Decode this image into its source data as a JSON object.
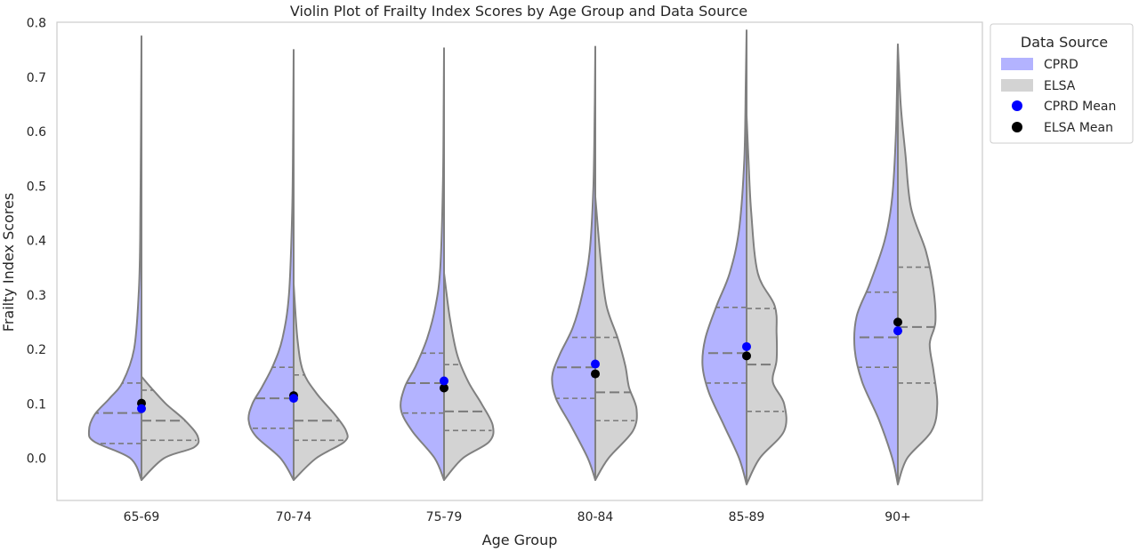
{
  "chart_data": {
    "type": "violin",
    "title": "Violin Plot of Frailty Index Scores by Age Group and Data Source",
    "xlabel": "Age Group",
    "ylabel": "Frailty Index Scores",
    "ylim": [
      -0.08,
      0.8
    ],
    "yticks": [
      "0.0",
      "0.1",
      "0.2",
      "0.3",
      "0.4",
      "0.5",
      "0.6",
      "0.7",
      "0.8"
    ],
    "categories": [
      "65-69",
      "70-74",
      "75-79",
      "80-84",
      "85-89",
      "90+"
    ],
    "grid": false,
    "legend": {
      "title": "Data Source",
      "placement": "outside right, top",
      "entries": [
        "CPRD",
        "ELSA",
        "CPRD Mean",
        "ELSA Mean"
      ]
    },
    "series": [
      {
        "name": "CPRD",
        "color": "#b3b3ff",
        "side": "left",
        "quartiles": [
          [
            0.027,
            0.083,
            0.138
          ],
          [
            0.055,
            0.11,
            0.167
          ],
          [
            0.083,
            0.138,
            0.193
          ],
          [
            0.11,
            0.167,
            0.222
          ],
          [
            0.138,
            0.193,
            0.277
          ],
          [
            0.167,
            0.222,
            0.305
          ]
        ],
        "means": [
          0.091,
          0.11,
          0.142,
          0.173,
          0.205,
          0.234
        ],
        "mean_color": "#0000ff",
        "range": [
          [
            -0.04,
            0.775
          ],
          [
            -0.04,
            0.75
          ],
          [
            -0.04,
            0.753
          ],
          [
            -0.04,
            0.756
          ],
          [
            -0.048,
            0.786
          ],
          [
            -0.048,
            0.76
          ]
        ],
        "shapes": [
          [
            [
              -0.04,
              0
            ],
            [
              0,
              0.06
            ],
            [
              0.03,
              0.25
            ],
            [
              0.05,
              0.28
            ],
            [
              0.08,
              0.25
            ],
            [
              0.11,
              0.17
            ],
            [
              0.14,
              0.1
            ],
            [
              0.2,
              0.04
            ],
            [
              0.3,
              0.015
            ],
            [
              0.4,
              0.007
            ],
            [
              0.6,
              0.003
            ],
            [
              0.775,
              0
            ]
          ],
          [
            [
              -0.04,
              0
            ],
            [
              0,
              0.07
            ],
            [
              0.04,
              0.2
            ],
            [
              0.07,
              0.24
            ],
            [
              0.1,
              0.22
            ],
            [
              0.13,
              0.17
            ],
            [
              0.17,
              0.11
            ],
            [
              0.22,
              0.06
            ],
            [
              0.3,
              0.025
            ],
            [
              0.45,
              0.008
            ],
            [
              0.6,
              0.003
            ],
            [
              0.75,
              0
            ]
          ],
          [
            [
              -0.04,
              0
            ],
            [
              0,
              0.05
            ],
            [
              0.05,
              0.17
            ],
            [
              0.09,
              0.23
            ],
            [
              0.13,
              0.21
            ],
            [
              0.17,
              0.15
            ],
            [
              0.22,
              0.09
            ],
            [
              0.28,
              0.045
            ],
            [
              0.35,
              0.02
            ],
            [
              0.5,
              0.006
            ],
            [
              0.65,
              0.002
            ],
            [
              0.753,
              0
            ]
          ],
          [
            [
              -0.04,
              0
            ],
            [
              0,
              0.04
            ],
            [
              0.06,
              0.13
            ],
            [
              0.11,
              0.21
            ],
            [
              0.15,
              0.23
            ],
            [
              0.19,
              0.19
            ],
            [
              0.24,
              0.12
            ],
            [
              0.3,
              0.07
            ],
            [
              0.38,
              0.03
            ],
            [
              0.5,
              0.01
            ],
            [
              0.65,
              0.003
            ],
            [
              0.756,
              0
            ]
          ],
          [
            [
              -0.048,
              0
            ],
            [
              0,
              0.04
            ],
            [
              0.06,
              0.12
            ],
            [
              0.12,
              0.2
            ],
            [
              0.17,
              0.235
            ],
            [
              0.22,
              0.22
            ],
            [
              0.28,
              0.16
            ],
            [
              0.34,
              0.09
            ],
            [
              0.42,
              0.04
            ],
            [
              0.55,
              0.012
            ],
            [
              0.7,
              0.004
            ],
            [
              0.786,
              0
            ]
          ],
          [
            [
              -0.048,
              0
            ],
            [
              0,
              0.03
            ],
            [
              0.07,
              0.1
            ],
            [
              0.14,
              0.19
            ],
            [
              0.2,
              0.23
            ],
            [
              0.26,
              0.22
            ],
            [
              0.32,
              0.15
            ],
            [
              0.4,
              0.07
            ],
            [
              0.48,
              0.03
            ],
            [
              0.6,
              0.01
            ],
            [
              0.76,
              0
            ]
          ]
        ]
      },
      {
        "name": "ELSA",
        "color": "#d3d3d3",
        "side": "right",
        "quartiles": [
          [
            0.033,
            0.069,
            0.125
          ],
          [
            0.033,
            0.069,
            0.153
          ],
          [
            0.051,
            0.086,
            0.172
          ],
          [
            0.069,
            0.121,
            0.222
          ],
          [
            0.086,
            0.172,
            0.275
          ],
          [
            0.138,
            0.241,
            0.351
          ]
        ],
        "means": [
          0.101,
          0.115,
          0.129,
          0.155,
          0.188,
          0.25
        ],
        "mean_color": "#000000",
        "range": [
          [
            -0.04,
            0.15
          ],
          [
            -0.04,
            0.32
          ],
          [
            -0.04,
            0.34
          ],
          [
            -0.04,
            0.48
          ],
          [
            -0.048,
            0.63
          ],
          [
            -0.048,
            0.76
          ]
        ],
        "shapes": [
          [
            [
              -0.04,
              0
            ],
            [
              0,
              0.12
            ],
            [
              0.02,
              0.28
            ],
            [
              0.04,
              0.3
            ],
            [
              0.07,
              0.23
            ],
            [
              0.1,
              0.13
            ],
            [
              0.13,
              0.05
            ],
            [
              0.15,
              0
            ]
          ],
          [
            [
              -0.04,
              0
            ],
            [
              0,
              0.12
            ],
            [
              0.03,
              0.27
            ],
            [
              0.05,
              0.28
            ],
            [
              0.08,
              0.22
            ],
            [
              0.12,
              0.12
            ],
            [
              0.16,
              0.05
            ],
            [
              0.22,
              0.02
            ],
            [
              0.32,
              0
            ]
          ],
          [
            [
              -0.04,
              0
            ],
            [
              0,
              0.1
            ],
            [
              0.03,
              0.24
            ],
            [
              0.06,
              0.26
            ],
            [
              0.1,
              0.2
            ],
            [
              0.14,
              0.13
            ],
            [
              0.19,
              0.07
            ],
            [
              0.26,
              0.03
            ],
            [
              0.34,
              0
            ]
          ],
          [
            [
              -0.04,
              0
            ],
            [
              0,
              0.07
            ],
            [
              0.05,
              0.2
            ],
            [
              0.09,
              0.22
            ],
            [
              0.13,
              0.18
            ],
            [
              0.17,
              0.16
            ],
            [
              0.22,
              0.12
            ],
            [
              0.28,
              0.06
            ],
            [
              0.36,
              0.03
            ],
            [
              0.48,
              0
            ]
          ],
          [
            [
              -0.048,
              0
            ],
            [
              0,
              0.07
            ],
            [
              0.05,
              0.2
            ],
            [
              0.1,
              0.2
            ],
            [
              0.14,
              0.14
            ],
            [
              0.18,
              0.16
            ],
            [
              0.23,
              0.16
            ],
            [
              0.28,
              0.15
            ],
            [
              0.34,
              0.06
            ],
            [
              0.45,
              0.025
            ],
            [
              0.55,
              0.01
            ],
            [
              0.63,
              0
            ]
          ],
          [
            [
              -0.048,
              0
            ],
            [
              0,
              0.05
            ],
            [
              0.05,
              0.18
            ],
            [
              0.1,
              0.21
            ],
            [
              0.16,
              0.19
            ],
            [
              0.21,
              0.17
            ],
            [
              0.25,
              0.2
            ],
            [
              0.31,
              0.19
            ],
            [
              0.38,
              0.15
            ],
            [
              0.46,
              0.07
            ],
            [
              0.56,
              0.04
            ],
            [
              0.65,
              0.015
            ],
            [
              0.76,
              0
            ]
          ]
        ]
      }
    ]
  }
}
